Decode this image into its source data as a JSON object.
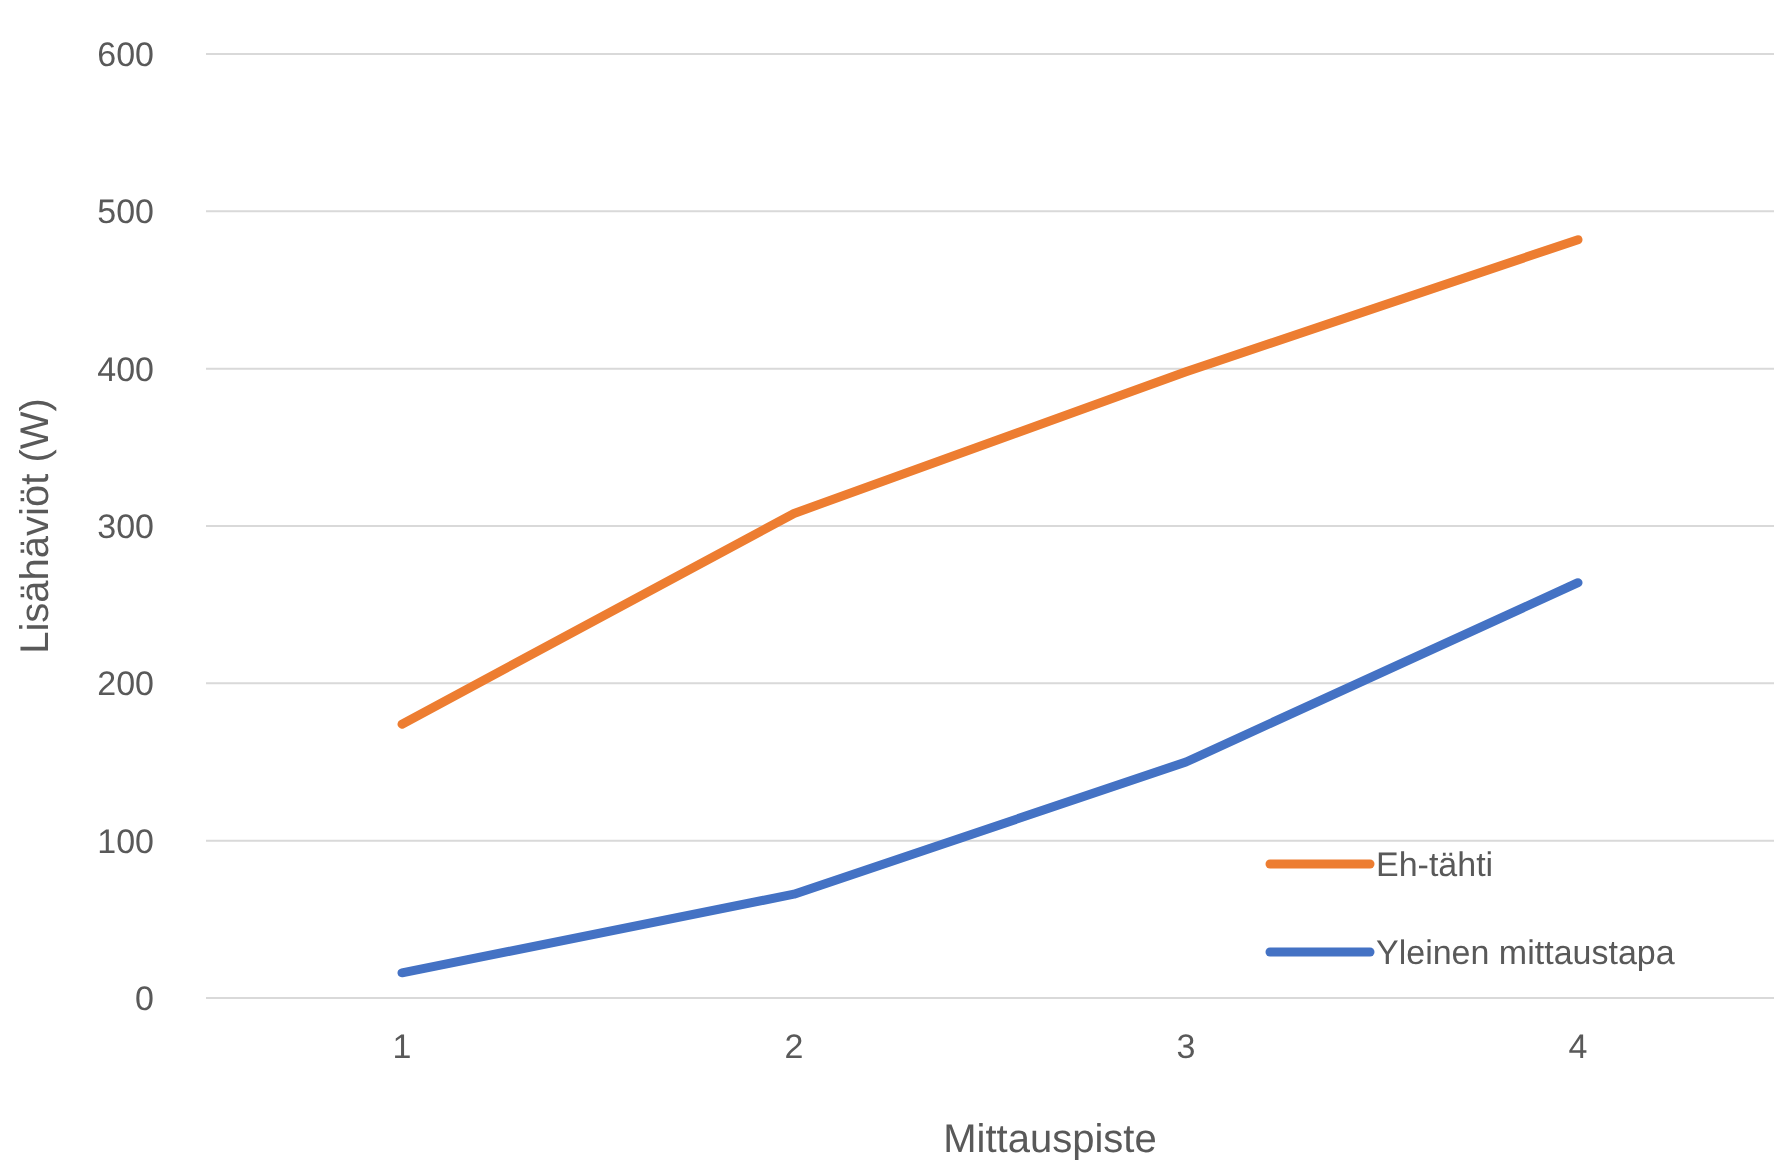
{
  "chart_data": {
    "type": "line",
    "xlabel": "Mittauspiste",
    "ylabel": "Lisähäviöt (W)",
    "categories": [
      "1",
      "2",
      "3",
      "4"
    ],
    "series": [
      {
        "name": "Eh-tähti",
        "color": "#ed7d31",
        "values": [
          174,
          308,
          398,
          482
        ]
      },
      {
        "name": "Yleinen mittaustapa",
        "color": "#4472c4",
        "values": [
          16,
          66,
          150,
          264
        ]
      }
    ],
    "ylim": [
      0,
      600
    ],
    "yticks": [
      0,
      100,
      200,
      300,
      400,
      500,
      600
    ],
    "grid": "y",
    "legend": "bottom right",
    "marker": "none",
    "line_style": "solid"
  }
}
